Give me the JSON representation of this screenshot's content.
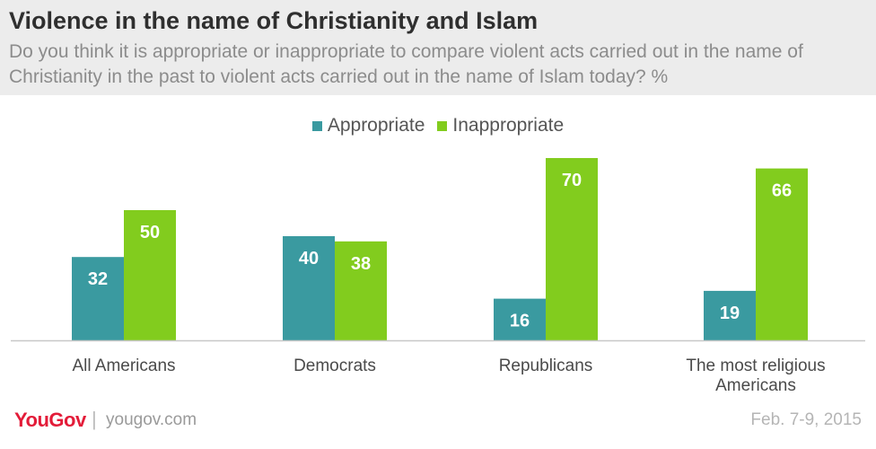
{
  "title": "Violence in the name of Christianity and Islam",
  "subtitle": "Do you think it is appropriate or inappropriate to compare violent acts carried out in the name of Christianity in the past to violent acts carried out in the name of Islam today? %",
  "legend": {
    "appropriate": "Appropriate",
    "inappropriate": "Inappropriate"
  },
  "colors": {
    "appropriate": "#3a9aa0",
    "inappropriate": "#82cc1e",
    "header_bg": "#ececec",
    "brand": "#e31c39"
  },
  "footer": {
    "brand": "YouGov",
    "url": "yougov.com",
    "date": "Feb. 7-9, 2015"
  },
  "chart_data": {
    "type": "bar",
    "categories": [
      "All Americans",
      "Democrats",
      "Republicans",
      "The most religious Americans"
    ],
    "series": [
      {
        "name": "Appropriate",
        "values": [
          32,
          40,
          16,
          19
        ]
      },
      {
        "name": "Inappropriate",
        "values": [
          50,
          38,
          70,
          66
        ]
      }
    ],
    "ylim": [
      0,
      70
    ],
    "grid": false,
    "legend_position": "top-center"
  }
}
